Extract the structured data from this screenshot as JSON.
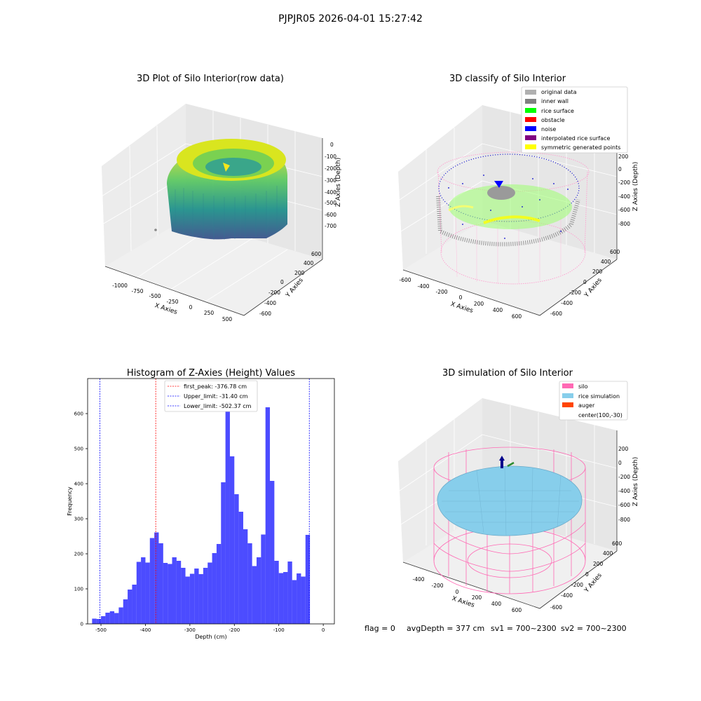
{
  "suptitle": "PJPJR05 2026-04-01 15:27:42",
  "panel1": {
    "title": "3D Plot of Silo Interior(row data)",
    "xlabel": "X Axies",
    "ylabel": "Y Axies",
    "zlabel": "Z Axies (Depth)",
    "xticks": [
      "-1000",
      "-750",
      "-500",
      "-250",
      "0",
      "250",
      "500"
    ],
    "yticks": [
      "-600",
      "-400",
      "-200",
      "0",
      "200",
      "400",
      "600"
    ],
    "zticks": [
      "0",
      "-100",
      "-200",
      "-300",
      "-400",
      "-500",
      "-600",
      "-700"
    ]
  },
  "panel2": {
    "title": "3D classify of Silo Interior",
    "xlabel": "X Axies",
    "ylabel": "Y Axies",
    "zlabel": "Z Axies (Depth)",
    "xticks": [
      "-600",
      "-400",
      "-200",
      "0",
      "200",
      "400",
      "600"
    ],
    "yticks": [
      "-600",
      "-400",
      "-200",
      "0",
      "200",
      "400",
      "600"
    ],
    "zticks": [
      "200",
      "0",
      "-200",
      "-400",
      "-600",
      "-800"
    ],
    "legend": [
      {
        "label": "original data",
        "color": "#b0b0b0"
      },
      {
        "label": "inner wall",
        "color": "#808080"
      },
      {
        "label": "rice surface",
        "color": "#00ff00"
      },
      {
        "label": "obstacle",
        "color": "#ff0000"
      },
      {
        "label": "noise",
        "color": "#0000ff"
      },
      {
        "label": "interpolated rice surface",
        "color": "#800080"
      },
      {
        "label": "symmetric generated points",
        "color": "#ffff00"
      }
    ]
  },
  "panel4": {
    "title": "3D simulation of Silo Interior",
    "xlabel": "X Axies",
    "ylabel": "Y Axies",
    "zlabel": "Z Axies (Depth)",
    "xticks": [
      "-400",
      "-200",
      "0",
      "200",
      "400",
      "600"
    ],
    "yticks": [
      "-600",
      "-400",
      "-200",
      "0",
      "200",
      "400",
      "600"
    ],
    "zticks": [
      "200",
      "0",
      "-200",
      "-400",
      "-600",
      "-800"
    ],
    "legend": [
      {
        "label": "silo",
        "color": "#ff69b4"
      },
      {
        "label": "rice simulation",
        "color": "#87ceeb"
      },
      {
        "label": "auger",
        "color": "#ff4500"
      },
      {
        "label": "center(100,-30)",
        "color": ""
      }
    ]
  },
  "status": {
    "flag": "flag = 0",
    "avgdepth": "avgDepth = 377 cm",
    "sv1": "sv1 = 700~2300",
    "sv2": "sv2 = 700~2300"
  },
  "chart_data": [
    {
      "type": "histogram",
      "title": "Histogram of Z-Axies (Height) Values",
      "xlabel": "Depth (cm)",
      "ylabel": "Frequency",
      "xlim": [
        -530,
        25
      ],
      "ylim": [
        0,
        700
      ],
      "xticks": [
        -500,
        -400,
        -300,
        -200,
        -100,
        0
      ],
      "yticks": [
        0,
        100,
        200,
        300,
        400,
        500,
        600
      ],
      "bin_start": -520,
      "bin_width": 10,
      "counts": [
        15,
        14,
        22,
        32,
        36,
        31,
        47,
        70,
        98,
        112,
        177,
        190,
        175,
        245,
        261,
        230,
        174,
        171,
        190,
        180,
        160,
        135,
        143,
        158,
        142,
        160,
        175,
        202,
        228,
        404,
        663,
        478,
        370,
        320,
        270,
        230,
        165,
        190,
        255,
        618,
        408,
        180,
        145,
        148,
        178,
        125,
        144,
        135,
        254
      ],
      "bar_color": "#0000ff",
      "vlines": [
        {
          "label": "first_peak: -376.78 cm",
          "x": -376.78,
          "color": "#ff0000"
        },
        {
          "label": "Upper_limit: -31.40 cm",
          "x": -31.4,
          "color": "#0000ff"
        },
        {
          "label": "Lower_limit: -502.37 cm",
          "x": -502.37,
          "color": "#0000ff"
        }
      ],
      "legend_position": "top-center"
    }
  ]
}
